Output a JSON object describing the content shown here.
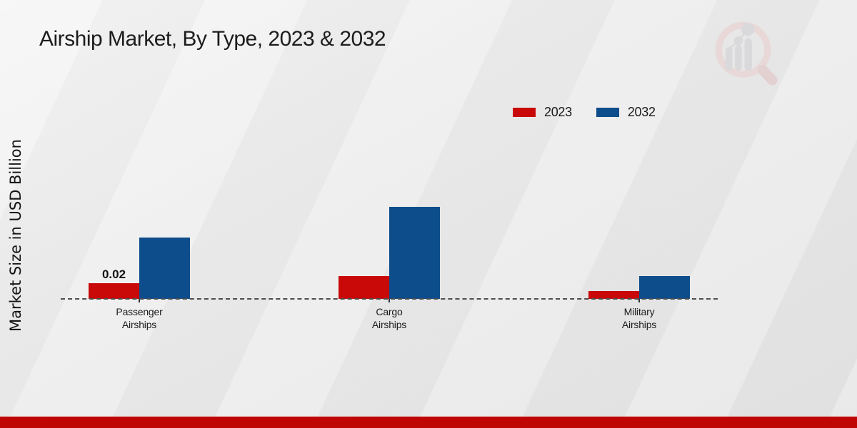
{
  "page": {
    "title": "Airship Market, By Type, 2023 & 2032",
    "y_axis_label": "Market Size in USD Billion"
  },
  "colors": {
    "series_2023_red": "#c90808",
    "series_2032_blue": "#0d4d8c",
    "footer_band_red": "#c00505",
    "baseline_gray": "#4d4d4d",
    "watermark_pink": "#e9d4d4",
    "watermark_gray": "#d5d5d8"
  },
  "chart_data": {
    "type": "bar",
    "title": "Airship Market, By Type, 2023 & 2032",
    "xlabel": "",
    "ylabel": "Market Size in USD Billion",
    "categories": [
      "Passenger Airships",
      "Cargo Airships",
      "Military Airships"
    ],
    "series": [
      {
        "name": "2023",
        "color": "#c90808",
        "values": [
          0.02,
          0.03,
          0.01
        ],
        "bar_labels": [
          "0.02",
          "",
          ""
        ]
      },
      {
        "name": "2032",
        "color": "#0d4d8c",
        "values": [
          0.08,
          0.12,
          0.03
        ],
        "bar_labels": [
          "",
          "",
          ""
        ]
      }
    ],
    "ylim": [
      0,
      0.14
    ],
    "grid": false,
    "axis_style": "dashed-baseline-only",
    "legend_position": "top-right",
    "bar_value_label_shown_only_for": "2023 Passenger Airships"
  },
  "watermark": {
    "name": "magnifier-bar-chart-logo"
  }
}
